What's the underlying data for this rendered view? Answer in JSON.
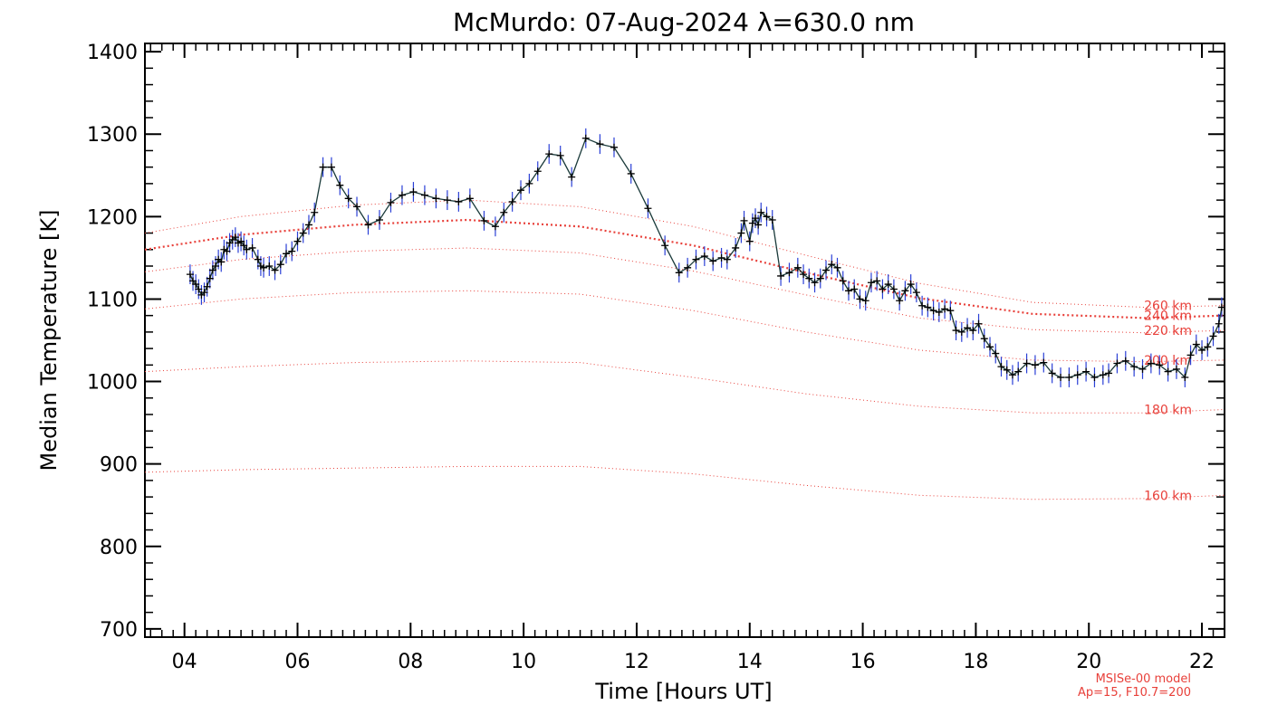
{
  "chart_data": {
    "type": "line",
    "title": "McMurdo: 07-Aug-2024 λ=630.0 nm",
    "xlabel": "Time [Hours UT]",
    "ylabel": "Median Temperature [K]",
    "xlim": [
      3.3,
      22.4
    ],
    "ylim": [
      690,
      1410
    ],
    "x_ticks": [
      4,
      6,
      8,
      10,
      12,
      14,
      16,
      18,
      20,
      22
    ],
    "x_tick_labels": [
      "04",
      "06",
      "08",
      "10",
      "12",
      "14",
      "16",
      "18",
      "20",
      "22"
    ],
    "y_ticks": [
      700,
      800,
      900,
      1000,
      1100,
      1200,
      1300,
      1400
    ],
    "y_tick_labels": [
      "700",
      "800",
      "900",
      "1000",
      "1100",
      "1200",
      "1300",
      "1400"
    ],
    "measured_series": {
      "color": "#000000",
      "error_color": "#2a3fd6",
      "points": [
        [
          4.1,
          1130
        ],
        [
          4.15,
          1122
        ],
        [
          4.2,
          1118
        ],
        [
          4.25,
          1112
        ],
        [
          4.3,
          1105
        ],
        [
          4.35,
          1108
        ],
        [
          4.4,
          1115
        ],
        [
          4.45,
          1125
        ],
        [
          4.5,
          1135
        ],
        [
          4.55,
          1140
        ],
        [
          4.6,
          1148
        ],
        [
          4.65,
          1145
        ],
        [
          4.7,
          1160
        ],
        [
          4.75,
          1158
        ],
        [
          4.8,
          1168
        ],
        [
          4.85,
          1172
        ],
        [
          4.9,
          1175
        ],
        [
          4.95,
          1168
        ],
        [
          5.0,
          1170
        ],
        [
          5.05,
          1165
        ],
        [
          5.1,
          1160
        ],
        [
          5.2,
          1162
        ],
        [
          5.3,
          1148
        ],
        [
          5.35,
          1140
        ],
        [
          5.4,
          1138
        ],
        [
          5.5,
          1140
        ],
        [
          5.6,
          1135
        ],
        [
          5.7,
          1142
        ],
        [
          5.8,
          1155
        ],
        [
          5.9,
          1158
        ],
        [
          6.0,
          1170
        ],
        [
          6.1,
          1180
        ],
        [
          6.2,
          1190
        ],
        [
          6.3,
          1205
        ],
        [
          6.45,
          1260
        ],
        [
          6.6,
          1260
        ],
        [
          6.75,
          1238
        ],
        [
          6.9,
          1222
        ],
        [
          7.05,
          1212
        ],
        [
          7.25,
          1190
        ],
        [
          7.45,
          1196
        ],
        [
          7.65,
          1217
        ],
        [
          7.85,
          1226
        ],
        [
          8.05,
          1230
        ],
        [
          8.25,
          1226
        ],
        [
          8.45,
          1222
        ],
        [
          8.65,
          1220
        ],
        [
          8.85,
          1218
        ],
        [
          9.05,
          1222
        ],
        [
          9.3,
          1195
        ],
        [
          9.5,
          1188
        ],
        [
          9.65,
          1205
        ],
        [
          9.8,
          1218
        ],
        [
          9.95,
          1232
        ],
        [
          10.1,
          1240
        ],
        [
          10.25,
          1255
        ],
        [
          10.45,
          1276
        ],
        [
          10.65,
          1274
        ],
        [
          10.85,
          1248
        ],
        [
          11.1,
          1295
        ],
        [
          11.35,
          1288
        ],
        [
          11.6,
          1284
        ],
        [
          11.9,
          1252
        ],
        [
          12.2,
          1210
        ],
        [
          12.5,
          1165
        ],
        [
          12.75,
          1132
        ],
        [
          12.9,
          1138
        ],
        [
          13.05,
          1148
        ],
        [
          13.2,
          1152
        ],
        [
          13.35,
          1146
        ],
        [
          13.5,
          1150
        ],
        [
          13.6,
          1148
        ],
        [
          13.75,
          1162
        ],
        [
          13.85,
          1180
        ],
        [
          13.9,
          1195
        ],
        [
          14.0,
          1170
        ],
        [
          14.05,
          1192
        ],
        [
          14.1,
          1198
        ],
        [
          14.15,
          1190
        ],
        [
          14.2,
          1205
        ],
        [
          14.3,
          1200
        ],
        [
          14.4,
          1196
        ],
        [
          14.55,
          1128
        ],
        [
          14.7,
          1132
        ],
        [
          14.85,
          1138
        ],
        [
          14.95,
          1130
        ],
        [
          15.05,
          1125
        ],
        [
          15.15,
          1120
        ],
        [
          15.25,
          1125
        ],
        [
          15.35,
          1135
        ],
        [
          15.45,
          1142
        ],
        [
          15.55,
          1138
        ],
        [
          15.65,
          1122
        ],
        [
          15.75,
          1110
        ],
        [
          15.85,
          1112
        ],
        [
          15.95,
          1100
        ],
        [
          16.05,
          1098
        ],
        [
          16.15,
          1120
        ],
        [
          16.25,
          1122
        ],
        [
          16.35,
          1112
        ],
        [
          16.45,
          1118
        ],
        [
          16.55,
          1112
        ],
        [
          16.65,
          1098
        ],
        [
          16.75,
          1110
        ],
        [
          16.85,
          1118
        ],
        [
          16.95,
          1108
        ],
        [
          17.05,
          1092
        ],
        [
          17.15,
          1090
        ],
        [
          17.25,
          1086
        ],
        [
          17.35,
          1084
        ],
        [
          17.45,
          1088
        ],
        [
          17.55,
          1086
        ],
        [
          17.65,
          1062
        ],
        [
          17.75,
          1060
        ],
        [
          17.85,
          1065
        ],
        [
          17.95,
          1062
        ],
        [
          18.05,
          1070
        ],
        [
          18.15,
          1052
        ],
        [
          18.25,
          1042
        ],
        [
          18.35,
          1034
        ],
        [
          18.45,
          1018
        ],
        [
          18.55,
          1014
        ],
        [
          18.65,
          1008
        ],
        [
          18.75,
          1012
        ],
        [
          18.9,
          1022
        ],
        [
          19.05,
          1020
        ],
        [
          19.2,
          1023
        ],
        [
          19.35,
          1010
        ],
        [
          19.5,
          1005
        ],
        [
          19.65,
          1005
        ],
        [
          19.8,
          1008
        ],
        [
          19.95,
          1012
        ],
        [
          20.1,
          1005
        ],
        [
          20.25,
          1008
        ],
        [
          20.35,
          1010
        ],
        [
          20.5,
          1022
        ],
        [
          20.65,
          1025
        ],
        [
          20.8,
          1018
        ],
        [
          20.95,
          1015
        ],
        [
          21.1,
          1022
        ],
        [
          21.25,
          1020
        ],
        [
          21.4,
          1012
        ],
        [
          21.55,
          1015
        ],
        [
          21.7,
          1005
        ],
        [
          21.8,
          1032
        ],
        [
          21.9,
          1045
        ],
        [
          22.0,
          1038
        ],
        [
          22.1,
          1042
        ],
        [
          22.2,
          1055
        ],
        [
          22.3,
          1070
        ],
        [
          22.35,
          1090
        ]
      ]
    },
    "model_series": [
      {
        "name": "160 km",
        "color": "#e8403a",
        "values": [
          [
            3.3,
            890
          ],
          [
            5.0,
            893
          ],
          [
            7.0,
            895
          ],
          [
            9.0,
            897
          ],
          [
            11.0,
            897
          ],
          [
            13.0,
            888
          ],
          [
            15.0,
            874
          ],
          [
            17.0,
            862
          ],
          [
            19.0,
            857
          ],
          [
            21.0,
            858
          ],
          [
            22.4,
            862
          ]
        ]
      },
      {
        "name": "180 km",
        "color": "#e8403a",
        "values": [
          [
            3.3,
            1012
          ],
          [
            5.0,
            1018
          ],
          [
            7.0,
            1023
          ],
          [
            9.0,
            1025
          ],
          [
            11.0,
            1023
          ],
          [
            13.0,
            1005
          ],
          [
            15.0,
            985
          ],
          [
            17.0,
            970
          ],
          [
            19.0,
            962
          ],
          [
            21.0,
            962
          ],
          [
            22.4,
            966
          ]
        ]
      },
      {
        "name": "200 km",
        "color": "#e8403a",
        "values": [
          [
            3.3,
            1088
          ],
          [
            5.0,
            1100
          ],
          [
            7.0,
            1108
          ],
          [
            9.0,
            1110
          ],
          [
            11.0,
            1106
          ],
          [
            13.0,
            1086
          ],
          [
            15.0,
            1060
          ],
          [
            17.0,
            1038
          ],
          [
            19.0,
            1026
          ],
          [
            21.0,
            1024
          ],
          [
            22.4,
            1026
          ]
        ]
      },
      {
        "name": "220 km",
        "color": "#e8403a",
        "values": [
          [
            3.3,
            1133
          ],
          [
            5.0,
            1148
          ],
          [
            7.0,
            1158
          ],
          [
            9.0,
            1162
          ],
          [
            11.0,
            1156
          ],
          [
            13.0,
            1134
          ],
          [
            15.0,
            1105
          ],
          [
            17.0,
            1077
          ],
          [
            19.0,
            1063
          ],
          [
            21.0,
            1059
          ],
          [
            22.4,
            1062
          ]
        ]
      },
      {
        "name": "240 km",
        "color": "#e8403a",
        "values": [
          [
            3.3,
            1160
          ],
          [
            5.0,
            1178
          ],
          [
            7.0,
            1190
          ],
          [
            9.0,
            1196
          ],
          [
            11.0,
            1188
          ],
          [
            13.0,
            1165
          ],
          [
            15.0,
            1132
          ],
          [
            17.0,
            1101
          ],
          [
            19.0,
            1082
          ],
          [
            21.0,
            1077
          ],
          [
            22.4,
            1080
          ]
        ],
        "emphasis": true
      },
      {
        "name": "260 km",
        "color": "#e8403a",
        "values": [
          [
            3.3,
            1180
          ],
          [
            5.0,
            1200
          ],
          [
            7.0,
            1214
          ],
          [
            9.0,
            1220
          ],
          [
            11.0,
            1212
          ],
          [
            13.0,
            1188
          ],
          [
            15.0,
            1153
          ],
          [
            17.0,
            1119
          ],
          [
            19.0,
            1096
          ],
          [
            21.0,
            1090
          ],
          [
            22.4,
            1092
          ]
        ]
      }
    ],
    "model_labels": {
      "160": "160 km",
      "180": "180 km",
      "200": "200 km",
      "220": "220 km",
      "240": "240 km",
      "260": "260 km"
    },
    "footer_note_line1": "MSISe-00 model",
    "footer_note_line2": "Ap=15, F10.7=200"
  }
}
